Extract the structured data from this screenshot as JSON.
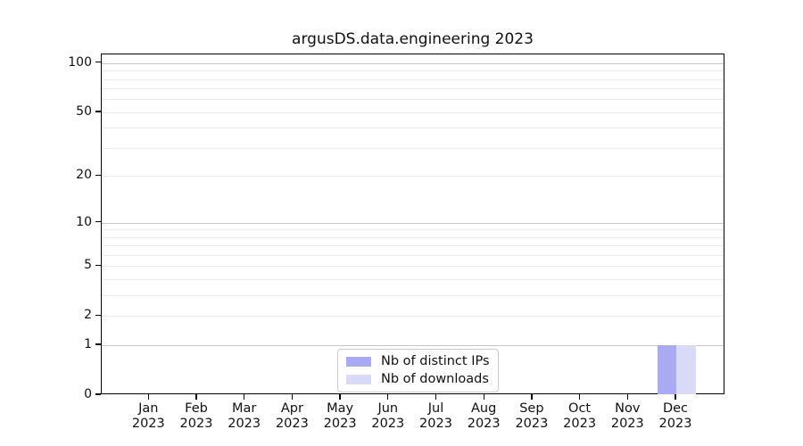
{
  "chart_data": {
    "type": "bar",
    "title": "argusDS.data.engineering 2023",
    "categories": [
      "Jan",
      "Feb",
      "Mar",
      "Apr",
      "May",
      "Jun",
      "Jul",
      "Aug",
      "Sep",
      "Oct",
      "Nov",
      "Dec"
    ],
    "category_year": "2023",
    "series": [
      {
        "name": "Nb of distinct IPs",
        "color": "#aaaaf2",
        "values": [
          0,
          0,
          0,
          0,
          0,
          0,
          0,
          0,
          0,
          0,
          0,
          1
        ]
      },
      {
        "name": "Nb of downloads",
        "color": "#d9d9f8",
        "values": [
          0,
          0,
          0,
          0,
          0,
          0,
          0,
          0,
          0,
          0,
          0,
          1
        ]
      }
    ],
    "yscale": "log1p",
    "ylim": [
      0,
      113
    ],
    "yticks": [
      0,
      1,
      2,
      5,
      10,
      20,
      50,
      100
    ],
    "grid": {
      "strong": [
        1,
        10,
        100
      ],
      "light": [
        2,
        3,
        4,
        5,
        6,
        7,
        8,
        9,
        20,
        30,
        40,
        50,
        60,
        70,
        80,
        90
      ],
      "strong_color": "#c6c6c6",
      "light_color": "#eaeaea"
    },
    "legend": {
      "position": "lower center"
    },
    "xlabel": "",
    "ylabel": ""
  }
}
